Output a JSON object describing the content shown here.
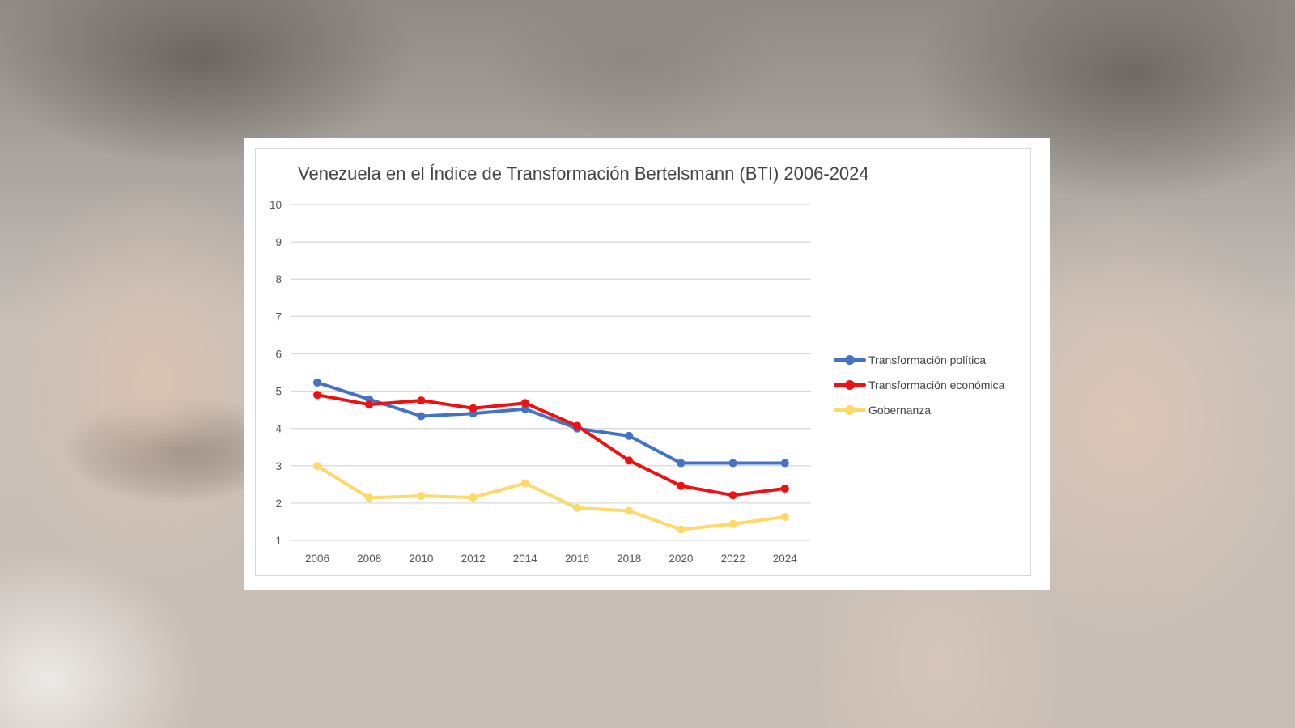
{
  "chart_data": {
    "type": "line",
    "title": "Venezuela en el Índice de Transformación Bertelsmann (BTI) 2006-2024",
    "xlabel": "",
    "ylabel": "",
    "categories": [
      "2006",
      "2008",
      "2010",
      "2012",
      "2014",
      "2016",
      "2018",
      "2020",
      "2022",
      "2024"
    ],
    "ylim": [
      1,
      10
    ],
    "yticks": [
      "10",
      "9",
      "8",
      "7",
      "6",
      "5",
      "4",
      "3",
      "2",
      "1"
    ],
    "grid": true,
    "legend_position": "right",
    "series": [
      {
        "name": "Transformación política",
        "color": "#4472c4",
        "values": [
          5.23,
          4.78,
          4.33,
          4.4,
          4.52,
          4.0,
          3.8,
          3.07,
          3.07,
          3.07
        ]
      },
      {
        "name": "Transformación económica",
        "color": "#ee1111",
        "values": [
          4.9,
          4.64,
          4.75,
          4.54,
          4.68,
          4.07,
          3.14,
          2.46,
          2.21,
          2.39
        ]
      },
      {
        "name": "Gobernanza",
        "color": "#ffd966",
        "values": [
          2.99,
          2.14,
          2.19,
          2.15,
          2.53,
          1.87,
          1.79,
          1.29,
          1.44,
          1.63
        ]
      }
    ]
  }
}
